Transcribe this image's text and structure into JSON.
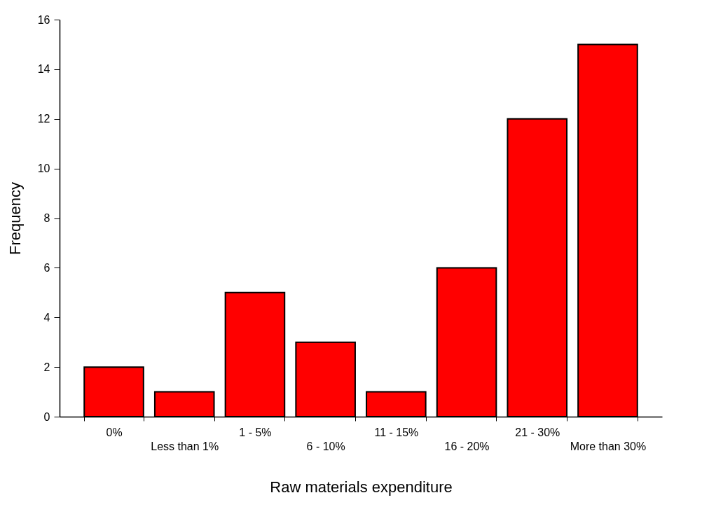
{
  "chart_data": {
    "type": "bar",
    "xlabel": "Raw materials expenditure",
    "ylabel": "Frequency",
    "categories": [
      "0%",
      "Less than 1%",
      "1 - 5%",
      "6 - 10%",
      "11 - 15%",
      "16 - 20%",
      "21 - 30%",
      "More than 30%"
    ],
    "values": [
      2,
      1,
      5,
      3,
      1,
      6,
      12,
      15
    ],
    "color": "#ff0000",
    "ylim": [
      0,
      16
    ],
    "yticks": [
      0,
      2,
      4,
      6,
      8,
      10,
      12,
      14,
      16
    ],
    "grid": false
  }
}
